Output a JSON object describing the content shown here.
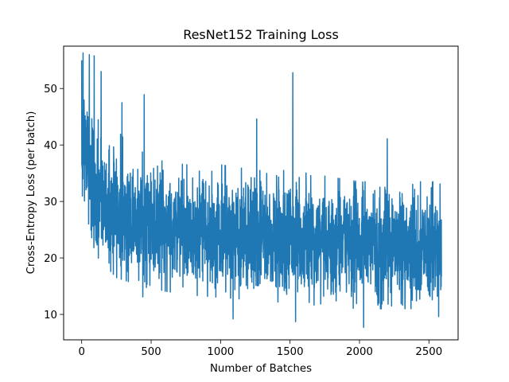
{
  "chart_data": {
    "type": "line",
    "title": "ResNet152 Training Loss",
    "xlabel": "Number of Batches",
    "ylabel": "Cross-Entropy Loss (per batch)",
    "xlim": [
      -130,
      2710
    ],
    "ylim": [
      5.5,
      57.5
    ],
    "xticks": [
      0,
      500,
      1000,
      1500,
      2000,
      2500
    ],
    "yticks": [
      10,
      20,
      30,
      40,
      50
    ],
    "xtick_labels": [
      "0",
      "500",
      "1000",
      "1500",
      "2000",
      "2500"
    ],
    "ytick_labels": [
      "10",
      "20",
      "30",
      "40",
      "50"
    ],
    "grid": false,
    "legend": "none",
    "series": [
      {
        "color": "#1f77b4",
        "n_points": 2591,
        "x_range": [
          0,
          2590
        ],
        "trend_x": [
          0,
          100,
          250,
          500,
          750,
          1000,
          1250,
          1500,
          1750,
          2000,
          2250,
          2590
        ],
        "trend_mean": [
          42,
          31,
          28,
          26,
          25,
          24.5,
          24,
          23.5,
          23,
          22.5,
          22,
          21.5
        ],
        "trend_low": [
          33,
          22,
          18,
          16,
          15,
          14.5,
          14,
          13.5,
          13,
          12.5,
          12.5,
          12.5
        ],
        "trend_high": [
          56,
          45,
          41,
          36,
          35,
          35,
          34,
          34,
          33,
          32,
          32,
          32
        ],
        "peaks": [
          {
            "x": 0,
            "y": 55
          },
          {
            "x": 10,
            "y": 56.3
          },
          {
            "x": 55,
            "y": 56
          },
          {
            "x": 90,
            "y": 55.8
          },
          {
            "x": 140,
            "y": 53
          },
          {
            "x": 290,
            "y": 47.5
          },
          {
            "x": 450,
            "y": 48.9
          },
          {
            "x": 1260,
            "y": 44.6
          },
          {
            "x": 1520,
            "y": 52.8
          },
          {
            "x": 2200,
            "y": 41.1
          },
          {
            "x": 2525,
            "y": 33.4
          },
          {
            "x": 2580,
            "y": 33.1
          }
        ],
        "troughs": [
          {
            "x": 440,
            "y": 13.1
          },
          {
            "x": 1090,
            "y": 9.2
          },
          {
            "x": 1540,
            "y": 8.7
          },
          {
            "x": 2030,
            "y": 7.7
          },
          {
            "x": 2570,
            "y": 9.6
          },
          {
            "x": 2590,
            "y": 16.7
          }
        ]
      }
    ]
  }
}
